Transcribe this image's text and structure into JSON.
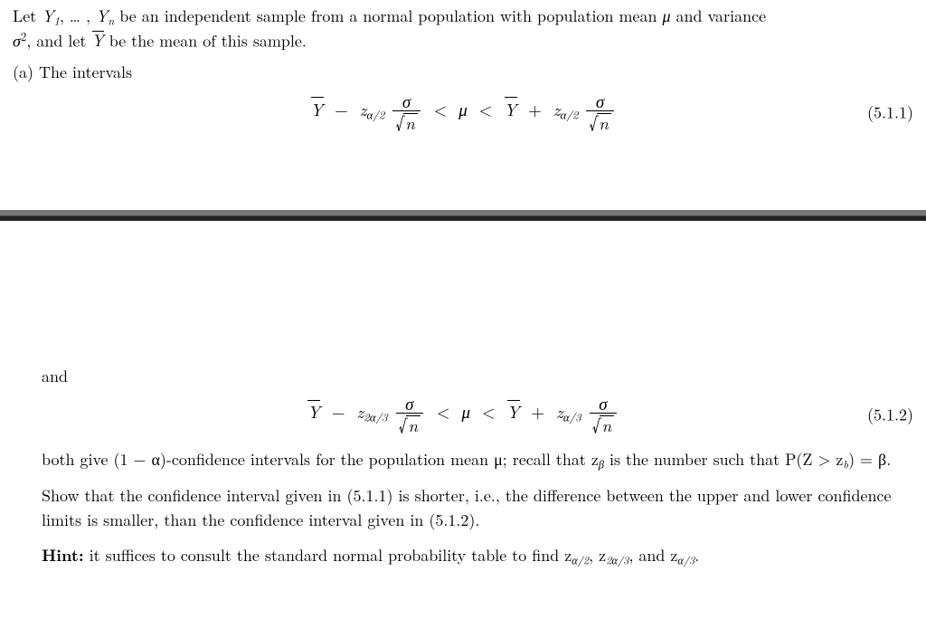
{
  "intro": "Let Y₁, … , Yₙ be an independent sample from a normal population with population mean μ and variance σ², and let Ȳ be the mean of this sample.",
  "part_a_label": "(a)  The intervals",
  "eq1": {
    "lhs_Ybar": "Y",
    "minus": "−",
    "z1": "z",
    "z1_sub": "α/2",
    "frac_num": "σ",
    "sqrt_radicand": "n",
    "lt1": "<",
    "mu": "μ",
    "lt2": "<",
    "plus": "+",
    "z2": "z",
    "z2_sub": "α/2",
    "eqnum": "(5.1.1)"
  },
  "and_label": "and",
  "eq2": {
    "lhs_Ybar": "Y",
    "minus": "−",
    "z1": "z",
    "z1_sub": "2α/3",
    "frac_num": "σ",
    "sqrt_radicand": "n",
    "lt1": "<",
    "mu": "μ",
    "lt2": "<",
    "plus": "+",
    "z2": "z",
    "z2_sub": "α/3",
    "eqnum": "(5.1.2)"
  },
  "para1_a": "both give (1 − α)-confidence intervals for the population mean μ; recall that z",
  "para1_b": " is the number such that P(Z > z",
  "para1_c": ") = β.",
  "beta_sub": "β",
  "b_sub": "b",
  "para2": "Show that the confidence interval given in (5.1.1) is shorter, i.e., the difference between the upper and lower confidence limits is smaller, than the confidence interval given in (5.1.2).",
  "hint_label": "Hint:",
  "hint_rest": " it suffices to consult the standard normal probability table to find z",
  "hint_s1": "α/2",
  "hint_sep": ", z",
  "hint_s2": "2α/3",
  "hint_sep2": ", and z",
  "hint_s3": "α/3",
  "hint_end": "."
}
